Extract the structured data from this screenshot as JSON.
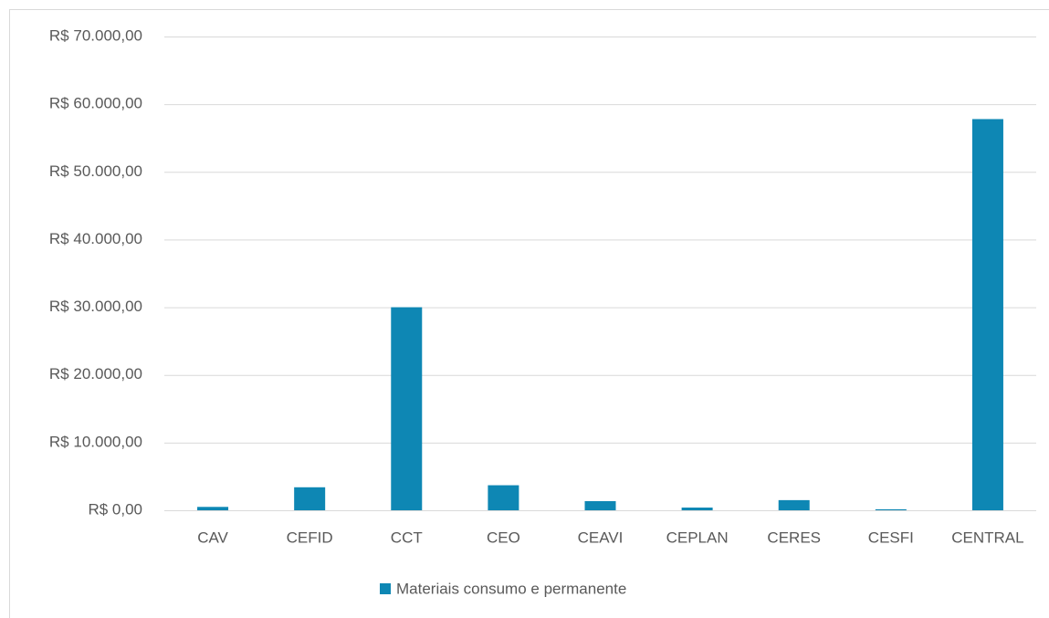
{
  "chart_data": {
    "type": "bar",
    "categories": [
      "CAV",
      "CEFID",
      "CCT",
      "CEO",
      "CEAVI",
      "CEPLAN",
      "CERES",
      "CESFI",
      "CENTRAL"
    ],
    "series": [
      {
        "name": "Materiais consumo e permanente",
        "color": "#0e87b4",
        "values": [
          500,
          3400,
          30000,
          3700,
          1350,
          400,
          1500,
          150,
          57800
        ]
      }
    ],
    "ylim": [
      0,
      70000
    ],
    "yticks": [
      {
        "value": 0,
        "label": "R$ 0,00"
      },
      {
        "value": 10000,
        "label": "R$ 10.000,00"
      },
      {
        "value": 20000,
        "label": "R$ 20.000,00"
      },
      {
        "value": 30000,
        "label": "R$ 30.000,00"
      },
      {
        "value": 40000,
        "label": "R$ 40.000,00"
      },
      {
        "value": 50000,
        "label": "R$ 50.000,00"
      },
      {
        "value": 60000,
        "label": "R$ 60.000,00"
      },
      {
        "value": 70000,
        "label": "R$ 70.000,00"
      }
    ],
    "grid": true,
    "legend": "bottom"
  }
}
